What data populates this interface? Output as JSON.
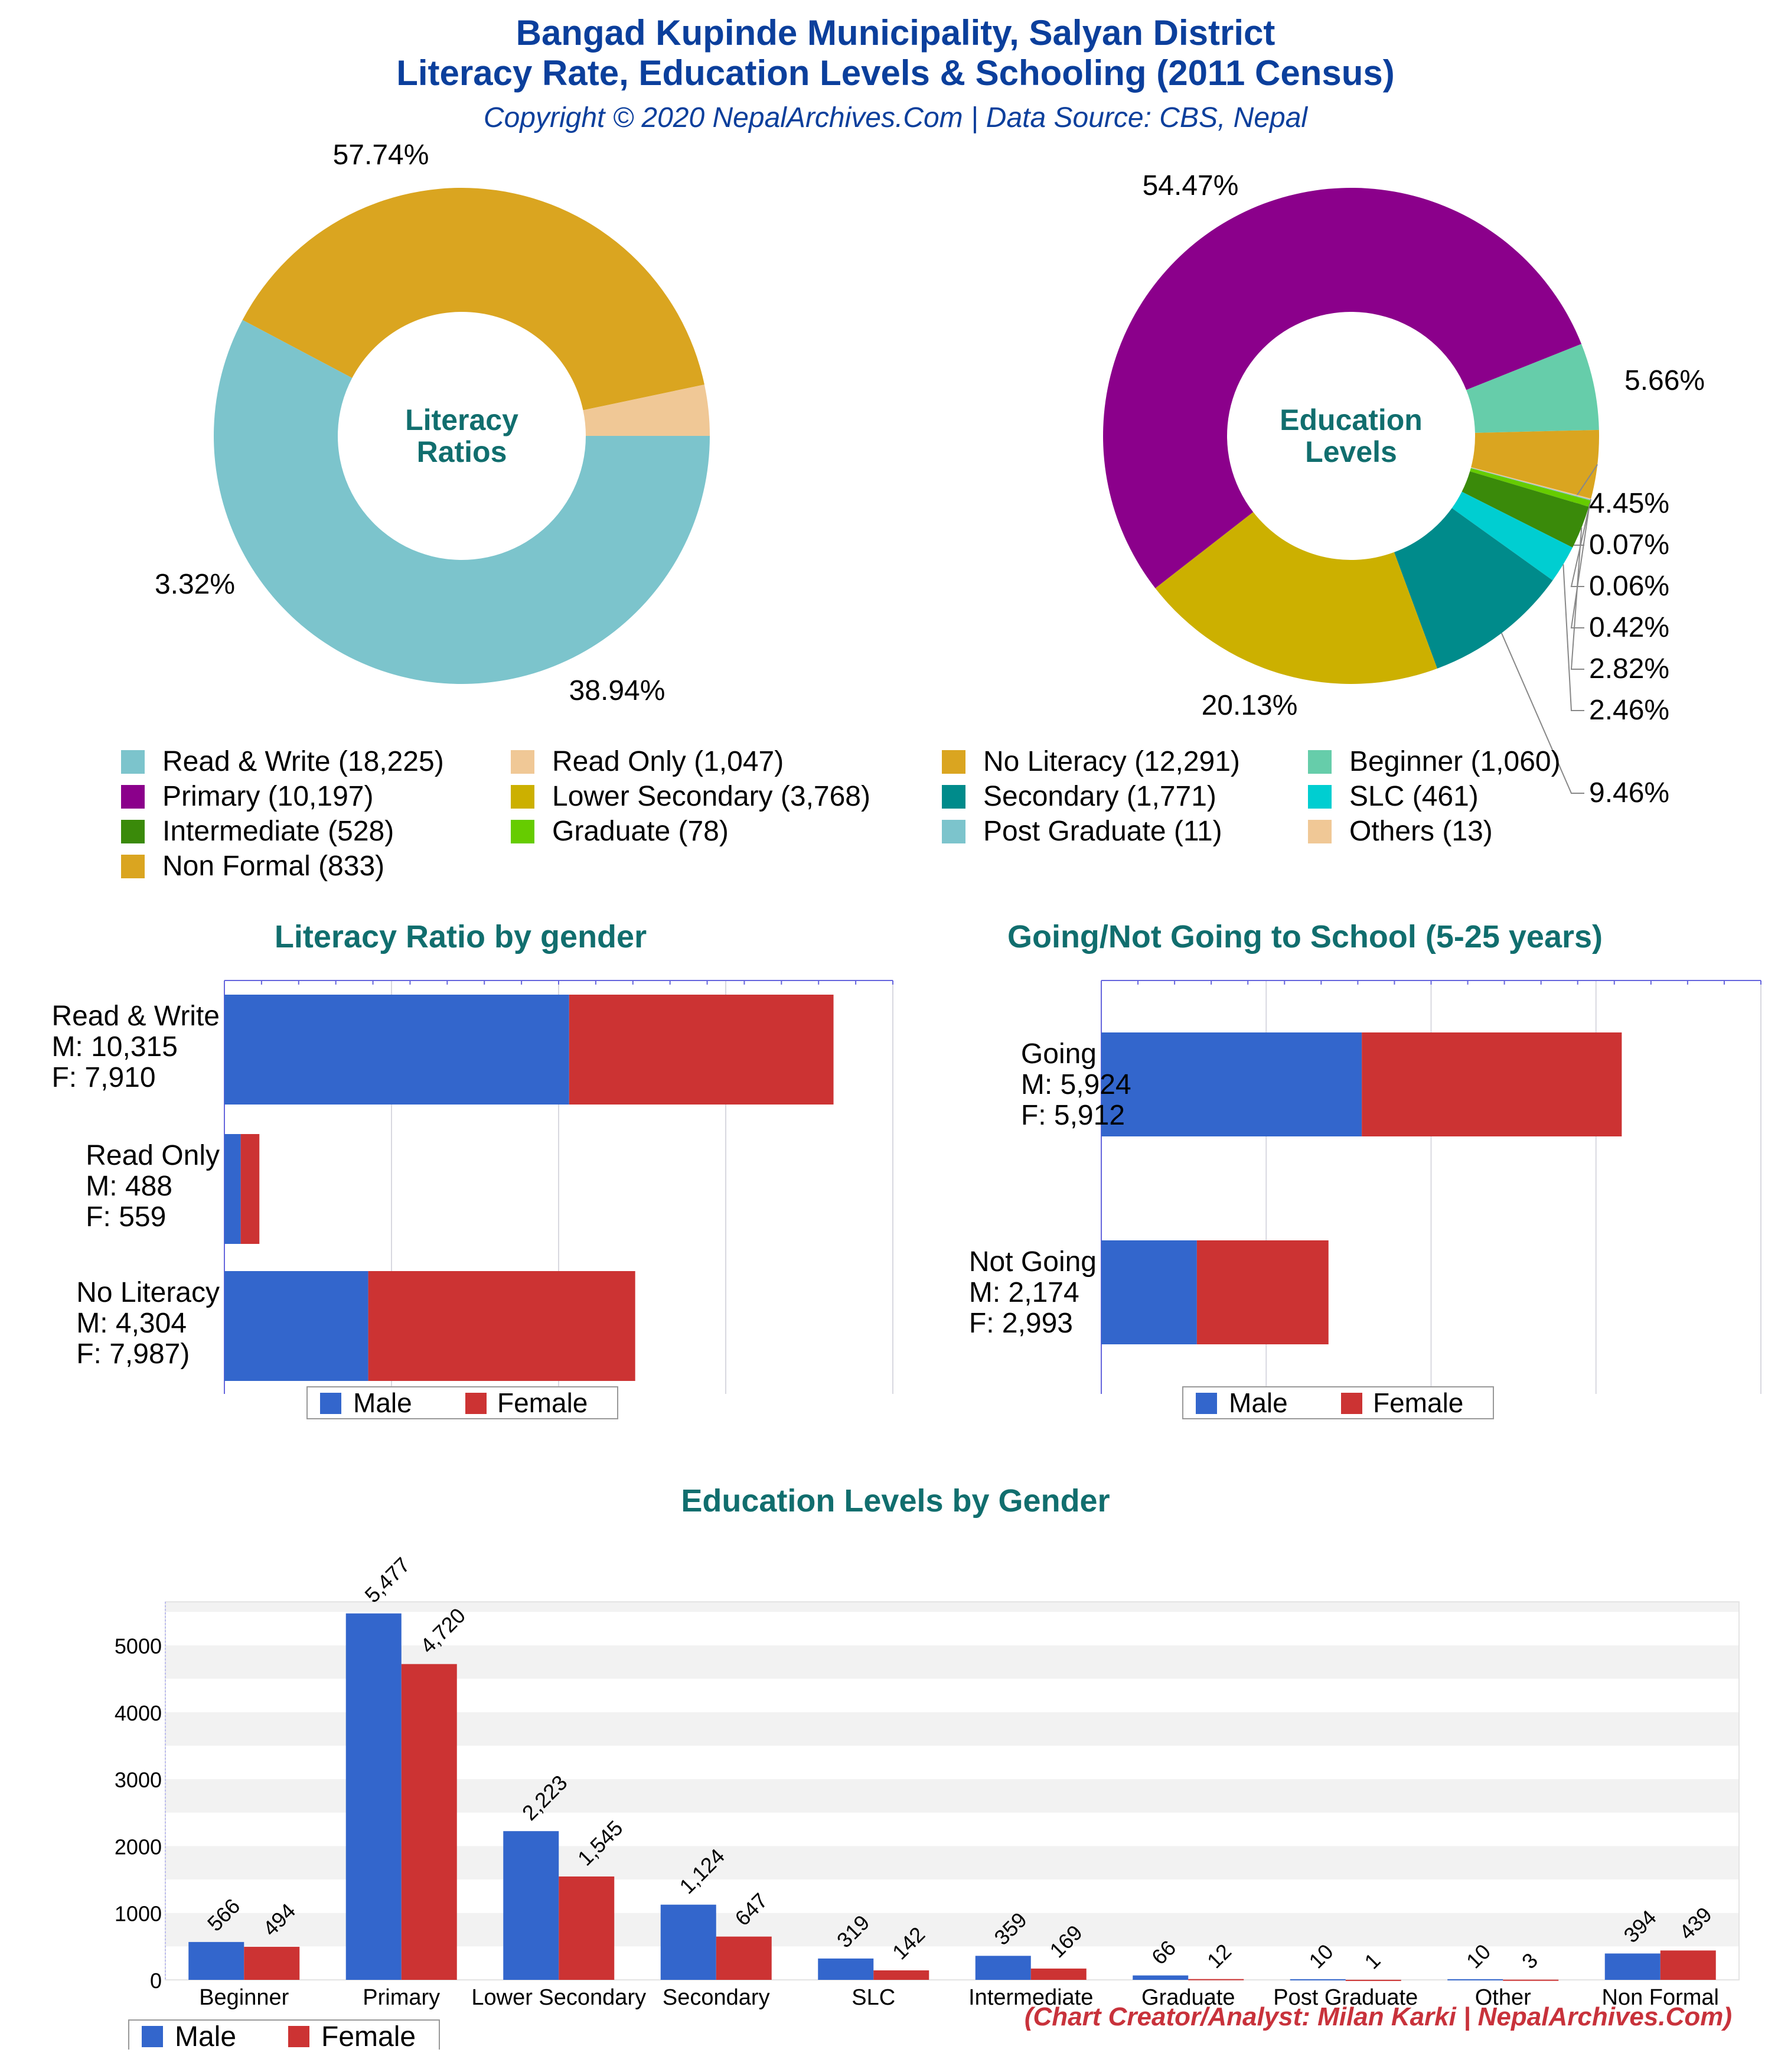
{
  "header": {
    "title_line1": "Bangad Kupinde Municipality, Salyan District",
    "title_line2": "Literacy Rate, Education Levels & Schooling (2011 Census)",
    "subtitle": "Copyright © 2020 NepalArchives.Com | Data Source: CBS, Nepal"
  },
  "footer": "(Chart Creator/Analyst: Milan Karki | NepalArchives.Com)",
  "legend_top": [
    {
      "label": "Read & Write (18,225)",
      "color": "#7cc4cc"
    },
    {
      "label": "Read Only (1,047)",
      "color": "#f0c896"
    },
    {
      "label": "No Literacy (12,291)",
      "color": "#daa520"
    },
    {
      "label": "Beginner (1,060)",
      "color": "#66cdaa"
    },
    {
      "label": "Primary (10,197)",
      "color": "#8b008b"
    },
    {
      "label": "Lower Secondary (3,768)",
      "color": "#ccb000"
    },
    {
      "label": "Secondary (1,771)",
      "color": "#008b8b"
    },
    {
      "label": "SLC (461)",
      "color": "#00ced1"
    },
    {
      "label": "Intermediate (528)",
      "color": "#3a8a0a"
    },
    {
      "label": "Graduate (78)",
      "color": "#66cc00"
    },
    {
      "label": "Post Graduate (11)",
      "color": "#7cc4cc"
    },
    {
      "label": "Others (13)",
      "color": "#f0c896"
    },
    {
      "label": "Non Formal (833)",
      "color": "#daa520"
    }
  ],
  "chart_data": [
    {
      "type": "pie",
      "center_label": [
        "Literacy",
        "Ratios"
      ],
      "slices": [
        {
          "name": "Read & Write",
          "value": 18225,
          "pct_label": "57.74%",
          "color": "#7cc4cc"
        },
        {
          "name": "No Literacy",
          "value": 12291,
          "pct_label": "38.94%",
          "color": "#daa520"
        },
        {
          "name": "Read Only",
          "value": 1047,
          "pct_label": "3.32%",
          "color": "#f0c896"
        }
      ]
    },
    {
      "type": "pie",
      "center_label": [
        "Education",
        "Levels"
      ],
      "slices": [
        {
          "name": "Beginner",
          "value": 1060,
          "pct_label": "5.66%",
          "color": "#66cdaa"
        },
        {
          "name": "Non Formal",
          "value": 833,
          "pct_label": "4.45%",
          "color": "#daa520"
        },
        {
          "name": "Others",
          "value": 13,
          "pct_label": "0.07%",
          "color": "#f0c896"
        },
        {
          "name": "Post Graduate",
          "value": 11,
          "pct_label": "0.06%",
          "color": "#7cc4cc"
        },
        {
          "name": "Graduate",
          "value": 78,
          "pct_label": "0.42%",
          "color": "#66cc00"
        },
        {
          "name": "Intermediate",
          "value": 528,
          "pct_label": "2.82%",
          "color": "#3a8a0a"
        },
        {
          "name": "SLC",
          "value": 461,
          "pct_label": "2.46%",
          "color": "#00ced1"
        },
        {
          "name": "Secondary",
          "value": 1771,
          "pct_label": "9.46%",
          "color": "#008b8b"
        },
        {
          "name": "Lower Secondary",
          "value": 3768,
          "pct_label": "20.13%",
          "color": "#ccb000"
        },
        {
          "name": "Primary",
          "value": 10197,
          "pct_label": "54.47%",
          "color": "#8b008b"
        }
      ]
    },
    {
      "type": "bar",
      "title": "Literacy Ratio by gender",
      "orientation": "horizontal-stacked",
      "categories": [
        {
          "lines": [
            "Read & Write",
            "M: 10,315",
            "F: 7,910"
          ]
        },
        {
          "lines": [
            "Read Only",
            "M: 488",
            "F: 559"
          ]
        },
        {
          "lines": [
            "No Literacy",
            "M: 4,304",
            "F: 7,987)"
          ]
        }
      ],
      "series": [
        {
          "name": "Male",
          "values": [
            10315,
            488,
            4304
          ],
          "color": "#3366cc"
        },
        {
          "name": "Female",
          "values": [
            7910,
            559,
            7987
          ],
          "color": "#cc3333"
        }
      ],
      "xlim": [
        0,
        20000
      ]
    },
    {
      "type": "bar",
      "title": "Going/Not Going to School (5-25 years)",
      "orientation": "horizontal-stacked",
      "categories": [
        {
          "lines": [
            "Going",
            "M: 5,924",
            "F: 5,912"
          ]
        },
        {
          "lines": [
            "Not Going",
            "M: 2,174",
            "F: 2,993"
          ]
        }
      ],
      "series": [
        {
          "name": "Male",
          "values": [
            5924,
            2174
          ],
          "color": "#3366cc"
        },
        {
          "name": "Female",
          "values": [
            5912,
            2993
          ],
          "color": "#cc3333"
        }
      ],
      "xlim": [
        0,
        15000
      ]
    },
    {
      "type": "bar",
      "title": "Education Levels by Gender",
      "categories": [
        "Beginner",
        "Primary",
        "Lower Secondary",
        "Secondary",
        "SLC",
        "Intermediate",
        "Graduate",
        "Post Graduate",
        "Other",
        "Non Formal"
      ],
      "series": [
        {
          "name": "Male",
          "values": [
            566,
            5477,
            2223,
            1124,
            319,
            359,
            66,
            10,
            10,
            394
          ],
          "labels": [
            "566",
            "5,477",
            "2,223",
            "1,124",
            "319",
            "359",
            "66",
            "10",
            "10",
            "394"
          ],
          "color": "#3366cc"
        },
        {
          "name": "Female",
          "values": [
            494,
            4720,
            1545,
            647,
            142,
            169,
            12,
            1,
            3,
            439
          ],
          "labels": [
            "494",
            "4,720",
            "1,545",
            "647",
            "142",
            "169",
            "12",
            "1",
            "3",
            "439"
          ],
          "color": "#cc3333"
        }
      ],
      "yticks": [
        0,
        1000,
        2000,
        3000,
        4000,
        5000
      ],
      "ylim": [
        0,
        5650
      ]
    }
  ],
  "legend_labels": {
    "male": "Male",
    "female": "Female"
  }
}
